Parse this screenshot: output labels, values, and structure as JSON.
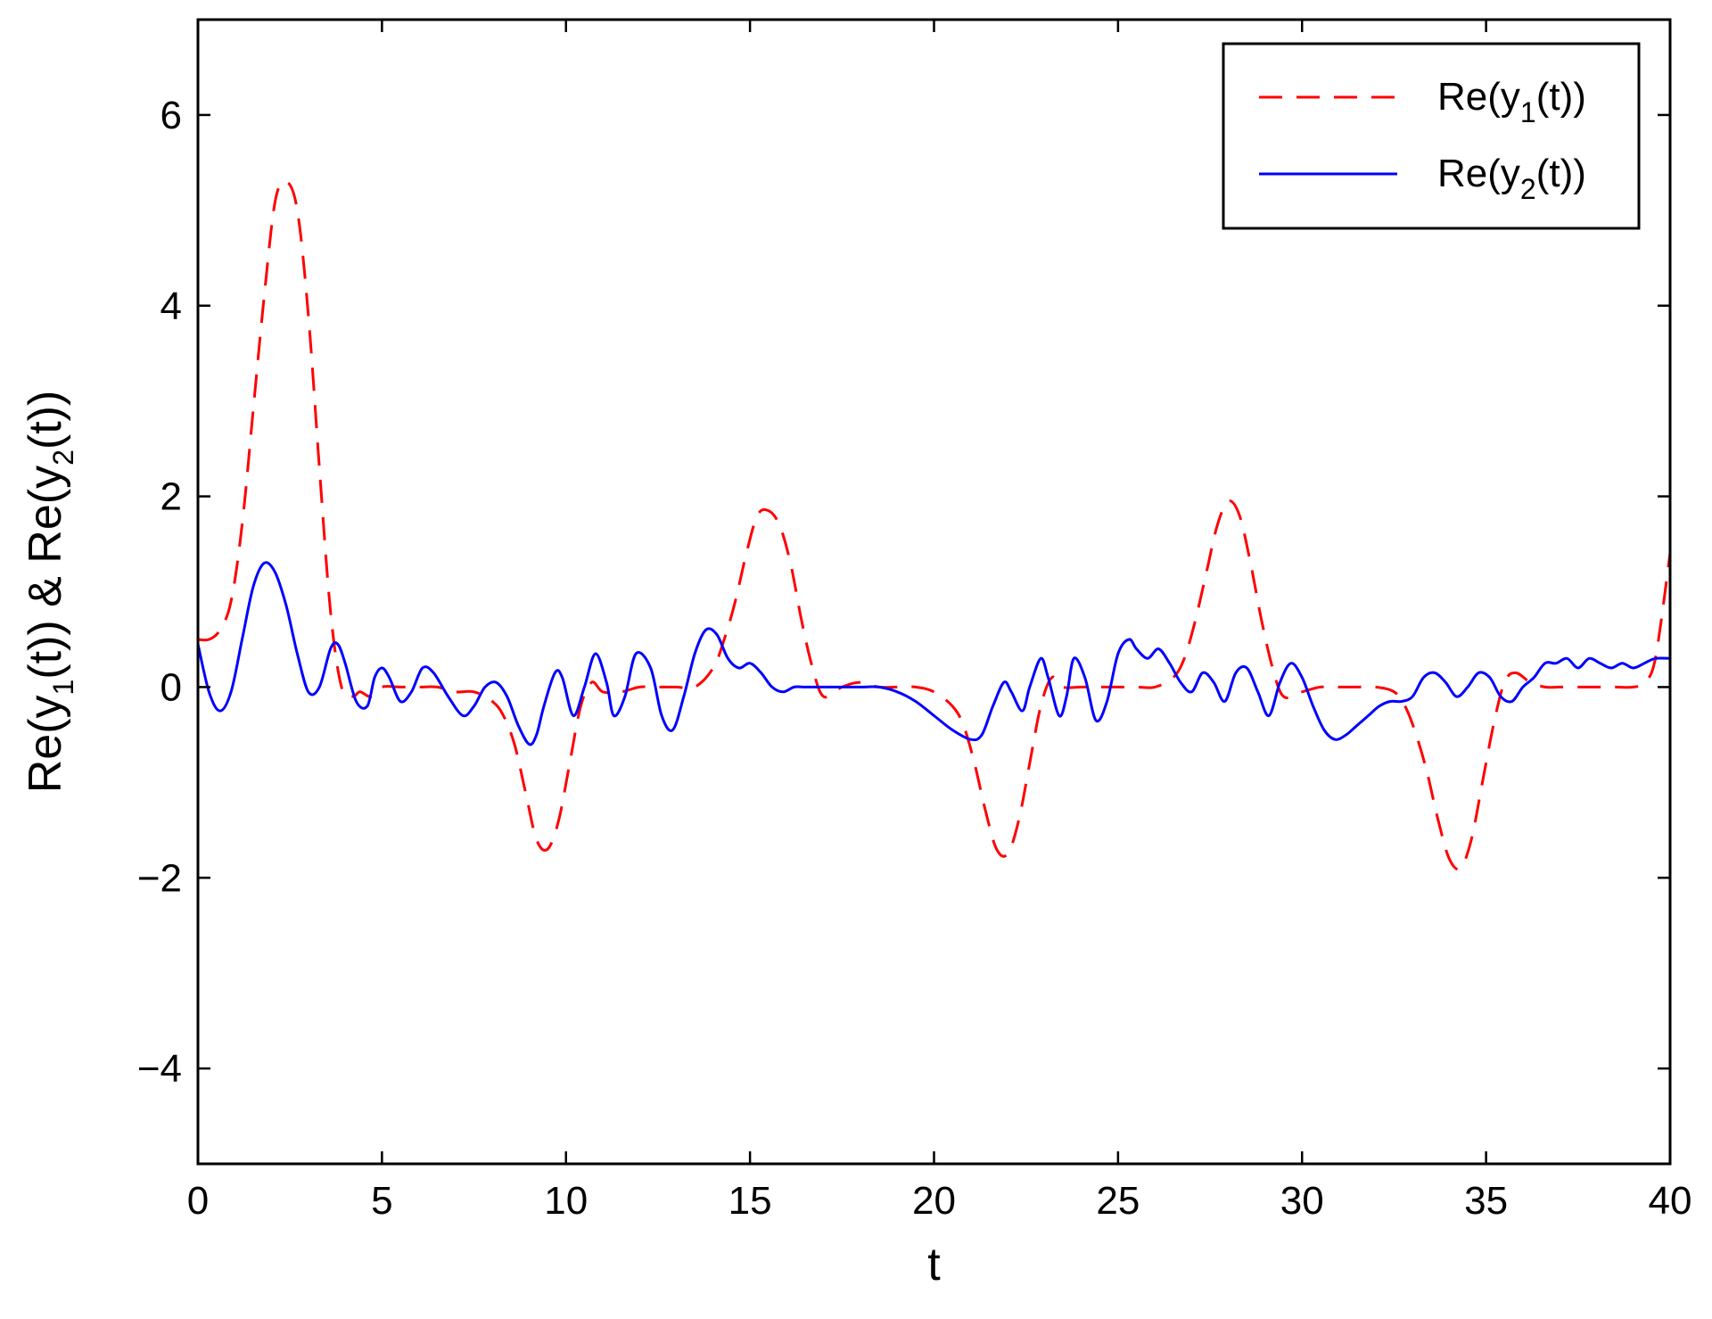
{
  "chart_data": {
    "type": "line",
    "xlabel": "t",
    "ylabel": {
      "parts": [
        {
          "text": "Re(y",
          "sub": false
        },
        {
          "text": "1",
          "sub": true
        },
        {
          "text": "(t)) & Re(y",
          "sub": false
        },
        {
          "text": "2",
          "sub": true
        },
        {
          "text": "(t))",
          "sub": false
        }
      ]
    },
    "xlim": [
      0,
      40
    ],
    "ylim": [
      -5,
      7
    ],
    "xticks": [
      0,
      5,
      10,
      15,
      20,
      25,
      30,
      35,
      40
    ],
    "yticks": [
      -4,
      -2,
      0,
      2,
      4,
      6
    ],
    "ytick_labels": [
      "−4",
      "−2",
      "0",
      "2",
      "4",
      "6"
    ],
    "xtick_labels": [
      "0",
      "5",
      "10",
      "15",
      "20",
      "25",
      "30",
      "35",
      "40"
    ],
    "grid": false,
    "legend_position": "top-right",
    "series": [
      {
        "name_parts": [
          {
            "text": "Re(y",
            "sub": false
          },
          {
            "text": "1",
            "sub": true
          },
          {
            "text": "(t))",
            "sub": false
          }
        ],
        "color": "#ff0000",
        "style": "dashed",
        "x": [
          0,
          0.3,
          0.6,
          0.9,
          1.2,
          1.5,
          1.8,
          2.1,
          2.4,
          2.7,
          3.0,
          3.3,
          3.6,
          3.9,
          4.2,
          4.4,
          4.7,
          5.0,
          5.5,
          6.0,
          6.5,
          7.0,
          7.5,
          8.0,
          8.3,
          8.6,
          8.9,
          9.2,
          9.5,
          9.8,
          10.1,
          10.4,
          10.7,
          11.0,
          11.5,
          12.0,
          12.5,
          13.0,
          13.5,
          14.0,
          14.3,
          14.6,
          14.9,
          15.2,
          15.5,
          15.8,
          16.1,
          16.4,
          16.7,
          17.0,
          17.5,
          18.0,
          18.5,
          19.0,
          19.5,
          20.0,
          20.5,
          20.8,
          21.1,
          21.4,
          21.7,
          22.0,
          22.3,
          22.6,
          22.9,
          23.2,
          23.5,
          24.0,
          24.5,
          25.0,
          25.5,
          26.0,
          26.5,
          26.8,
          27.1,
          27.4,
          27.7,
          28.0,
          28.3,
          28.6,
          28.9,
          29.2,
          29.5,
          30.0,
          30.5,
          31.0,
          31.5,
          32.0,
          32.5,
          32.8,
          33.1,
          33.4,
          33.7,
          34.0,
          34.3,
          34.6,
          34.9,
          35.2,
          35.5,
          35.8,
          36.2,
          36.6,
          37.0,
          37.5,
          38.0,
          38.5,
          39.0,
          39.3,
          39.6,
          40.0
        ],
        "y": [
          0.5,
          0.5,
          0.6,
          0.9,
          1.7,
          2.9,
          4.1,
          5.1,
          5.3,
          5.0,
          3.9,
          2.3,
          0.8,
          0.0,
          -0.1,
          -0.05,
          -0.1,
          0.0,
          0.0,
          0.0,
          0.0,
          -0.05,
          -0.05,
          -0.15,
          -0.3,
          -0.6,
          -1.1,
          -1.6,
          -1.7,
          -1.4,
          -0.8,
          -0.2,
          0.05,
          -0.05,
          -0.05,
          0.0,
          0.0,
          0.0,
          0.0,
          0.2,
          0.5,
          0.9,
          1.4,
          1.8,
          1.85,
          1.7,
          1.3,
          0.7,
          0.2,
          -0.1,
          0.0,
          0.05,
          0.0,
          0.0,
          0.0,
          -0.05,
          -0.2,
          -0.4,
          -0.8,
          -1.3,
          -1.7,
          -1.75,
          -1.4,
          -0.8,
          -0.2,
          0.1,
          0.0,
          0.0,
          0.0,
          0.0,
          0.0,
          0.0,
          0.1,
          0.3,
          0.7,
          1.2,
          1.7,
          1.95,
          1.8,
          1.3,
          0.7,
          0.2,
          -0.1,
          -0.05,
          0.0,
          0.0,
          0.0,
          0.0,
          -0.05,
          -0.2,
          -0.5,
          -0.9,
          -1.4,
          -1.8,
          -1.9,
          -1.6,
          -1.0,
          -0.4,
          0.05,
          0.15,
          0.05,
          0.0,
          0.0,
          0.0,
          0.0,
          0.0,
          0.0,
          0.05,
          0.3,
          1.4
        ]
      },
      {
        "name_parts": [
          {
            "text": "Re(y",
            "sub": false
          },
          {
            "text": "2",
            "sub": true
          },
          {
            "text": "(t))",
            "sub": false
          }
        ],
        "color": "#0000ff",
        "style": "solid",
        "x": [
          0,
          0.3,
          0.6,
          0.9,
          1.2,
          1.5,
          1.8,
          2.1,
          2.4,
          2.7,
          3.0,
          3.3,
          3.6,
          3.8,
          4.0,
          4.3,
          4.6,
          4.8,
          5.0,
          5.2,
          5.5,
          5.8,
          6.1,
          6.4,
          6.8,
          7.2,
          7.5,
          7.8,
          8.1,
          8.4,
          8.7,
          9.0,
          9.2,
          9.4,
          9.7,
          9.9,
          10.2,
          10.5,
          10.8,
          11.1,
          11.3,
          11.6,
          11.9,
          12.3,
          12.6,
          12.9,
          13.2,
          13.5,
          13.8,
          14.1,
          14.4,
          14.7,
          15.0,
          15.3,
          15.6,
          15.9,
          16.2,
          16.5,
          16.8,
          17.2,
          17.6,
          18.0,
          18.5,
          19.0,
          19.5,
          20.0,
          20.5,
          21.0,
          21.3,
          21.6,
          21.9,
          22.1,
          22.4,
          22.6,
          22.9,
          23.1,
          23.4,
          23.6,
          23.8,
          24.1,
          24.4,
          24.7,
          25.0,
          25.3,
          25.5,
          25.8,
          26.1,
          26.4,
          26.7,
          27.0,
          27.3,
          27.6,
          27.9,
          28.2,
          28.5,
          28.8,
          29.1,
          29.4,
          29.7,
          30.0,
          30.3,
          30.6,
          30.9,
          31.2,
          31.5,
          31.8,
          32.1,
          32.4,
          32.7,
          33.0,
          33.3,
          33.6,
          33.9,
          34.2,
          34.5,
          34.8,
          35.1,
          35.4,
          35.7,
          36.0,
          36.3,
          36.6,
          36.9,
          37.2,
          37.5,
          37.8,
          38.1,
          38.4,
          38.7,
          39.0,
          39.3,
          39.6,
          40.0
        ],
        "y": [
          0.45,
          -0.05,
          -0.25,
          -0.05,
          0.5,
          1.05,
          1.3,
          1.2,
          0.85,
          0.35,
          -0.05,
          0.0,
          0.4,
          0.45,
          0.25,
          -0.15,
          -0.2,
          0.1,
          0.2,
          0.1,
          -0.15,
          -0.05,
          0.2,
          0.15,
          -0.1,
          -0.3,
          -0.2,
          0.0,
          0.05,
          -0.1,
          -0.4,
          -0.6,
          -0.5,
          -0.2,
          0.15,
          0.1,
          -0.3,
          0.0,
          0.35,
          0.05,
          -0.3,
          -0.1,
          0.35,
          0.2,
          -0.3,
          -0.45,
          -0.1,
          0.35,
          0.6,
          0.55,
          0.3,
          0.2,
          0.25,
          0.15,
          0.0,
          -0.05,
          0.0,
          0.0,
          0.0,
          0.0,
          0.0,
          0.0,
          0.0,
          -0.05,
          -0.15,
          -0.3,
          -0.45,
          -0.55,
          -0.5,
          -0.2,
          0.05,
          -0.05,
          -0.25,
          0.0,
          0.3,
          0.1,
          -0.3,
          -0.1,
          0.3,
          0.1,
          -0.35,
          -0.15,
          0.35,
          0.5,
          0.4,
          0.3,
          0.4,
          0.25,
          0.05,
          -0.05,
          0.15,
          0.05,
          -0.15,
          0.15,
          0.2,
          -0.05,
          -0.3,
          0.05,
          0.25,
          0.1,
          -0.2,
          -0.45,
          -0.55,
          -0.5,
          -0.4,
          -0.3,
          -0.2,
          -0.15,
          -0.15,
          -0.1,
          0.1,
          0.15,
          0.05,
          -0.1,
          0.0,
          0.15,
          0.1,
          -0.1,
          -0.15,
          0.0,
          0.1,
          0.25,
          0.25,
          0.3,
          0.2,
          0.3,
          0.25,
          0.2,
          0.25,
          0.2,
          0.25,
          0.3,
          0.3
        ]
      }
    ]
  }
}
